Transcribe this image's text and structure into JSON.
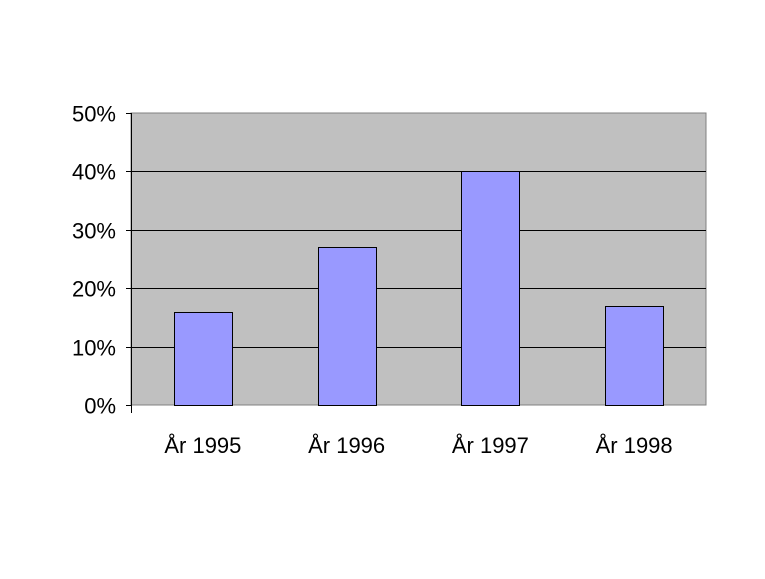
{
  "chart_data": {
    "type": "bar",
    "title": "",
    "xlabel": "",
    "ylabel": "",
    "categories": [
      "År 1995",
      "År 1996",
      "År 1997",
      "År 1998"
    ],
    "values": [
      16,
      27,
      40,
      17
    ],
    "ylim": [
      0,
      50
    ],
    "y_ticks": [
      "0%",
      "10%",
      "20%",
      "30%",
      "40%",
      "50%"
    ],
    "y_tick_values": [
      0,
      10,
      20,
      30,
      40,
      50
    ],
    "grid": true,
    "legend": "none",
    "colors": {
      "plot_background": "#c0c0c0",
      "bar_fill": "#9999ff",
      "bar_stroke": "#000000",
      "gridline": "#000000"
    }
  }
}
